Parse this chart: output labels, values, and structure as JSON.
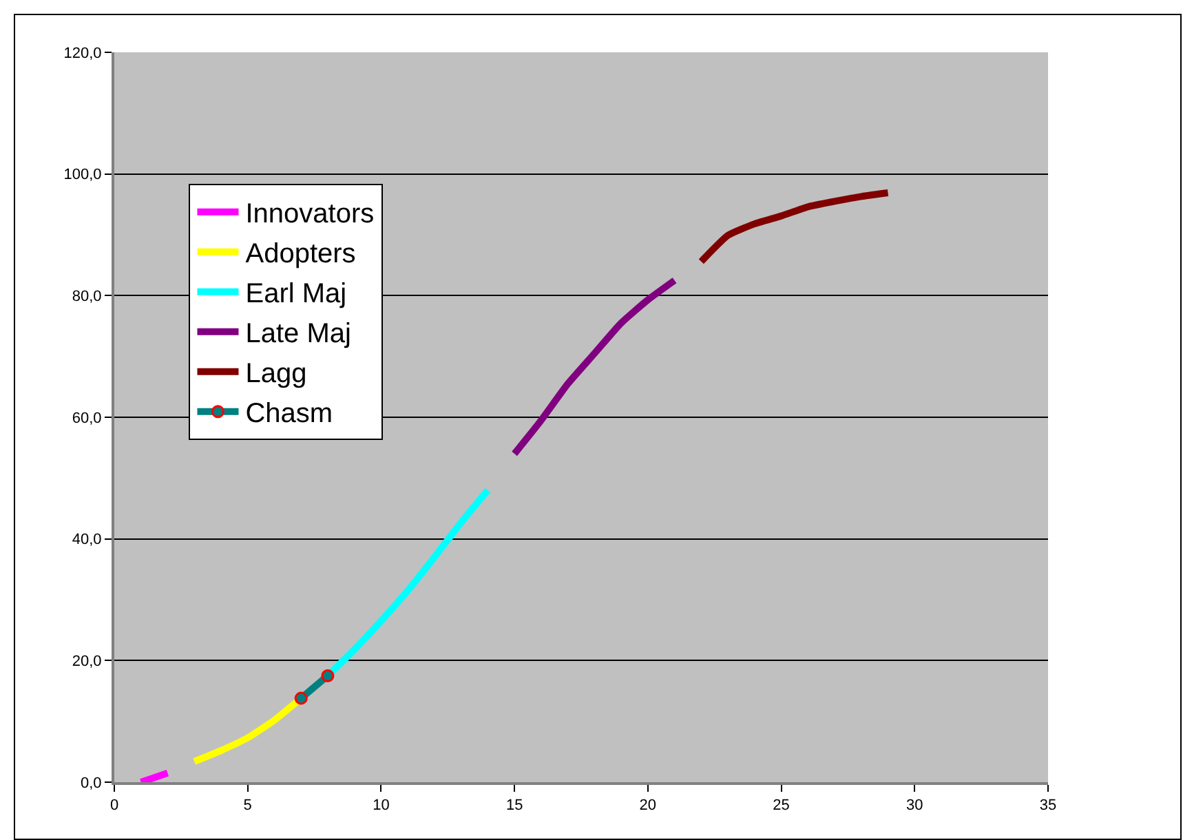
{
  "chart_data": {
    "type": "line",
    "xlim": [
      0,
      35
    ],
    "xticks": [
      0,
      5,
      10,
      15,
      20,
      25,
      30,
      35
    ],
    "ylim": [
      0,
      120
    ],
    "yticks": [
      {
        "value": 0,
        "label": "0,0"
      },
      {
        "value": 20,
        "label": "20,0"
      },
      {
        "value": 40,
        "label": "40,0"
      },
      {
        "value": 60,
        "label": "60,0"
      },
      {
        "value": 80,
        "label": "80,0"
      },
      {
        "value": 100,
        "label": "100,0"
      },
      {
        "value": 120,
        "label": "120,0"
      }
    ],
    "grid": "y",
    "legend": "top left",
    "marker": "none",
    "line_style": "solid",
    "series": [
      {
        "name": "Innovators",
        "color": "#ff00ff",
        "x": [
          1,
          2
        ],
        "values": [
          0,
          1.5
        ]
      },
      {
        "name": "Adopters",
        "color": "#ffff00",
        "x": [
          3,
          4,
          5,
          6,
          7
        ],
        "values": [
          3.4,
          5.2,
          7.3,
          10.2,
          13.8
        ]
      },
      {
        "name": "Earl Maj",
        "color": "#00ffff",
        "x": [
          8,
          9,
          10,
          11,
          12,
          13,
          14
        ],
        "values": [
          17.5,
          21.8,
          26.5,
          31.5,
          37,
          42.7,
          48
        ]
      },
      {
        "name": "Late Maj",
        "color": "#800080",
        "x": [
          15,
          16,
          17,
          18,
          19,
          20,
          21
        ],
        "values": [
          54,
          59.5,
          65.5,
          70.5,
          75.5,
          79.3,
          82.5
        ]
      },
      {
        "name": "Lagg",
        "color": "#800000",
        "x": [
          22,
          23,
          24,
          25,
          26,
          27,
          28,
          29
        ],
        "values": [
          85.6,
          89.9,
          91.8,
          93.1,
          94.6,
          95.5,
          96.3,
          96.9
        ]
      },
      {
        "name": "Chasm",
        "color": "#008080",
        "marker": "circle",
        "x": [
          7,
          8
        ],
        "values": [
          13.8,
          17.5
        ]
      }
    ]
  }
}
